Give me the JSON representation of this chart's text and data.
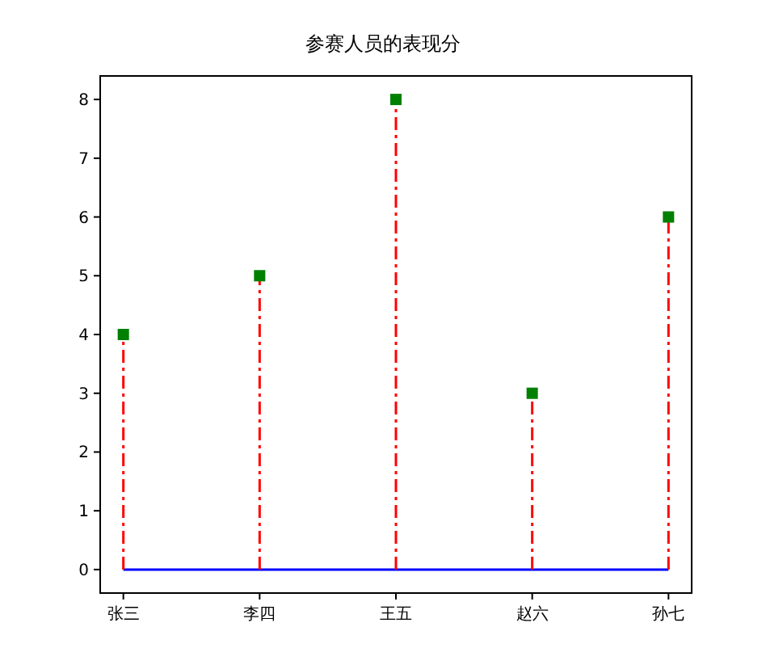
{
  "chart_data": {
    "type": "lollipop",
    "title": "参赛人员的表现分",
    "categories": [
      "张三",
      "李四",
      "王五",
      "赵六",
      "孙七"
    ],
    "series": [
      {
        "color": "#008000",
        "values": [
          4,
          5,
          8,
          3,
          6
        ]
      }
    ],
    "marker": "square",
    "line_style": "dashdot",
    "ylim": [
      -0.4,
      8.4
    ],
    "yticks": [
      0,
      1,
      2,
      3,
      4,
      5,
      6,
      7,
      8
    ],
    "ref_lines": [
      {
        "axis": "y",
        "value": 0,
        "color": "#0000ff"
      }
    ]
  }
}
